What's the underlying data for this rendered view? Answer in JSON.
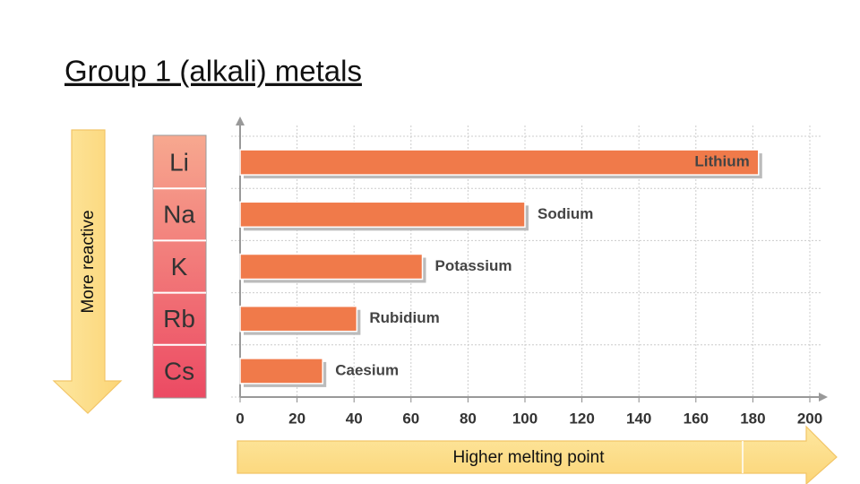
{
  "chart_data": {
    "type": "bar",
    "orientation": "horizontal",
    "title": "Group 1 (alkali) metals",
    "categories": [
      "Lithium",
      "Sodium",
      "Potassium",
      "Rubidium",
      "Caesium"
    ],
    "element_symbols": [
      "Li",
      "Na",
      "K",
      "Rb",
      "Cs"
    ],
    "values": [
      182,
      100,
      64,
      41,
      29
    ],
    "color": "#f07a4a",
    "xlim": [
      0,
      200
    ],
    "xticks": [
      0,
      20,
      40,
      60,
      80,
      100,
      120,
      140,
      160,
      180,
      200
    ],
    "grid": true,
    "y_annotation": "More reactive",
    "x_annotation": "Higher melting point"
  }
}
